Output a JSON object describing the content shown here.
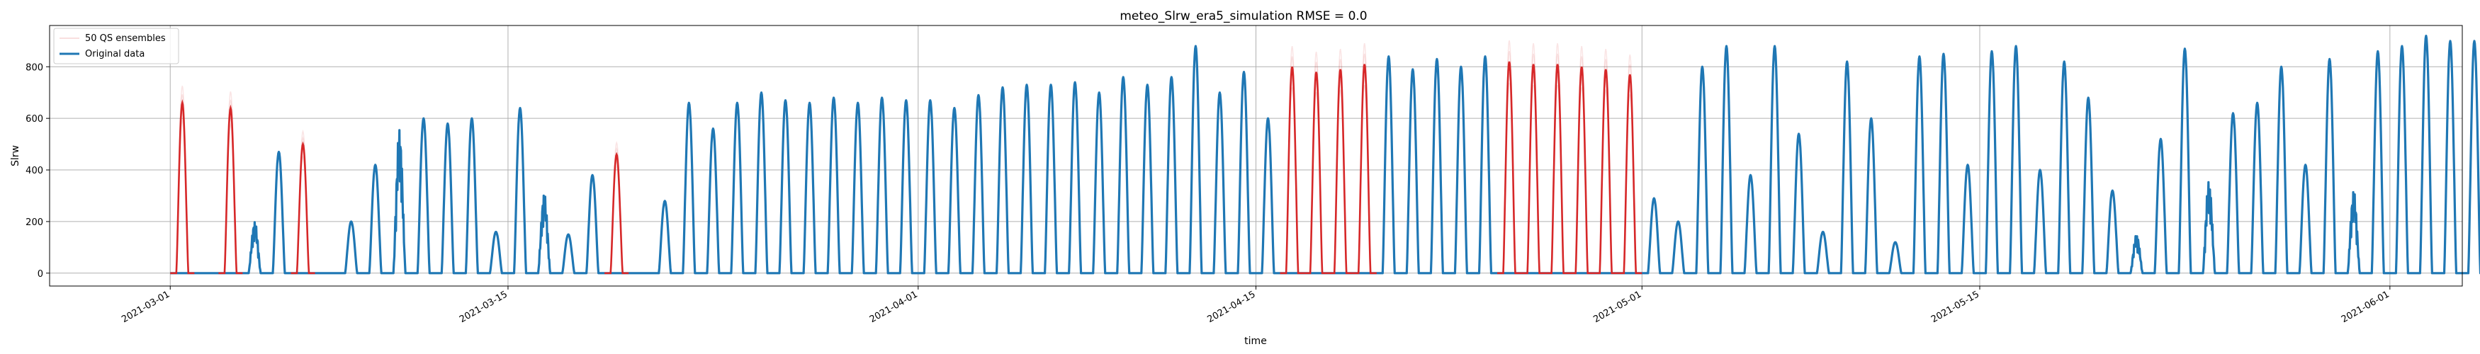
{
  "chart_data": {
    "type": "line",
    "title": "meteo_Slrw_era5_simulation RMSE = 0.0",
    "xlabel": "time",
    "ylabel": "Slrw",
    "xlim": [
      "2021-02-24",
      "2021-06-04"
    ],
    "ylim": [
      -50,
      960
    ],
    "grid": true,
    "legend": {
      "position": "top-left",
      "entries": [
        "50 QS ensembles",
        "Original data"
      ]
    },
    "x_ticks": [
      "2021-03-01",
      "2021-03-15",
      "2021-04-01",
      "2021-04-15",
      "2021-05-01",
      "2021-05-15",
      "2021-06-01"
    ],
    "y_ticks": [
      0,
      200,
      400,
      600,
      800
    ],
    "series": [
      {
        "name": "Original data",
        "color": "#1f77b4",
        "daily_peak": [
          [
            "2021-03-01",
            0
          ],
          [
            "2021-03-02",
            0
          ],
          [
            "2021-03-03",
            0
          ],
          [
            "2021-03-04",
            200
          ],
          [
            "2021-03-05",
            470
          ],
          [
            "2021-03-06",
            0
          ],
          [
            "2021-03-07",
            0
          ],
          [
            "2021-03-08",
            200
          ],
          [
            "2021-03-09",
            420
          ],
          [
            "2021-03-10",
            560
          ],
          [
            "2021-03-11",
            600
          ],
          [
            "2021-03-12",
            580
          ],
          [
            "2021-03-13",
            600
          ],
          [
            "2021-03-14",
            160
          ],
          [
            "2021-03-15",
            640
          ],
          [
            "2021-03-16",
            310
          ],
          [
            "2021-03-17",
            150
          ],
          [
            "2021-03-18",
            380
          ],
          [
            "2021-03-19",
            80
          ],
          [
            "2021-03-20",
            0
          ],
          [
            "2021-03-21",
            280
          ],
          [
            "2021-03-22",
            660
          ],
          [
            "2021-03-23",
            560
          ],
          [
            "2021-03-24",
            660
          ],
          [
            "2021-03-25",
            700
          ],
          [
            "2021-03-26",
            670
          ],
          [
            "2021-03-27",
            660
          ],
          [
            "2021-03-28",
            680
          ],
          [
            "2021-03-29",
            660
          ],
          [
            "2021-03-30",
            680
          ],
          [
            "2021-03-31",
            670
          ],
          [
            "2021-04-01",
            670
          ],
          [
            "2021-04-02",
            640
          ],
          [
            "2021-04-03",
            690
          ],
          [
            "2021-04-04",
            720
          ],
          [
            "2021-04-05",
            730
          ],
          [
            "2021-04-06",
            730
          ],
          [
            "2021-04-07",
            740
          ],
          [
            "2021-04-08",
            700
          ],
          [
            "2021-04-09",
            760
          ],
          [
            "2021-04-10",
            730
          ],
          [
            "2021-04-11",
            760
          ],
          [
            "2021-04-12",
            880
          ],
          [
            "2021-04-13",
            700
          ],
          [
            "2021-04-14",
            780
          ],
          [
            "2021-04-15",
            600
          ],
          [
            "2021-04-16",
            820
          ],
          [
            "2021-04-17",
            800
          ],
          [
            "2021-04-18",
            760
          ],
          [
            "2021-04-19",
            0
          ],
          [
            "2021-04-20",
            840
          ],
          [
            "2021-04-21",
            790
          ],
          [
            "2021-04-22",
            830
          ],
          [
            "2021-04-23",
            800
          ],
          [
            "2021-04-24",
            840
          ],
          [
            "2021-04-25",
            0
          ],
          [
            "2021-04-26",
            0
          ],
          [
            "2021-04-27",
            0
          ],
          [
            "2021-04-28",
            0
          ],
          [
            "2021-04-29",
            0
          ],
          [
            "2021-04-30",
            0
          ],
          [
            "2021-05-01",
            290
          ],
          [
            "2021-05-02",
            200
          ],
          [
            "2021-05-03",
            800
          ],
          [
            "2021-05-04",
            880
          ],
          [
            "2021-05-05",
            380
          ],
          [
            "2021-05-06",
            880
          ],
          [
            "2021-05-07",
            540
          ],
          [
            "2021-05-08",
            160
          ],
          [
            "2021-05-09",
            820
          ],
          [
            "2021-05-10",
            600
          ],
          [
            "2021-05-11",
            120
          ],
          [
            "2021-05-12",
            840
          ],
          [
            "2021-05-13",
            850
          ],
          [
            "2021-05-14",
            420
          ],
          [
            "2021-05-15",
            860
          ],
          [
            "2021-05-16",
            880
          ],
          [
            "2021-05-17",
            400
          ],
          [
            "2021-05-18",
            820
          ],
          [
            "2021-05-19",
            680
          ],
          [
            "2021-05-20",
            320
          ],
          [
            "2021-05-21",
            150
          ],
          [
            "2021-05-22",
            520
          ],
          [
            "2021-05-23",
            870
          ],
          [
            "2021-05-24",
            360
          ],
          [
            "2021-05-25",
            620
          ],
          [
            "2021-05-26",
            660
          ],
          [
            "2021-05-27",
            800
          ],
          [
            "2021-05-28",
            420
          ],
          [
            "2021-05-29",
            830
          ],
          [
            "2021-05-30",
            320
          ],
          [
            "2021-05-31",
            860
          ],
          [
            "2021-06-01",
            880
          ],
          [
            "2021-06-02",
            920
          ],
          [
            "2021-06-03",
            900
          ],
          [
            "2021-06-04",
            900
          ]
        ]
      },
      {
        "name": "50 QS ensembles",
        "color": "#d62728",
        "gap_days_peak": [
          [
            "2021-03-01",
            660
          ],
          [
            "2021-03-03",
            640
          ],
          [
            "2021-03-06",
            500
          ],
          [
            "2021-03-19",
            460
          ],
          [
            "2021-04-16",
            800
          ],
          [
            "2021-04-17",
            780
          ],
          [
            "2021-04-18",
            790
          ],
          [
            "2021-04-19",
            810
          ],
          [
            "2021-04-25",
            820
          ],
          [
            "2021-04-26",
            810
          ],
          [
            "2021-04-27",
            810
          ],
          [
            "2021-04-28",
            800
          ],
          [
            "2021-04-29",
            790
          ],
          [
            "2021-04-30",
            770
          ]
        ]
      }
    ]
  }
}
